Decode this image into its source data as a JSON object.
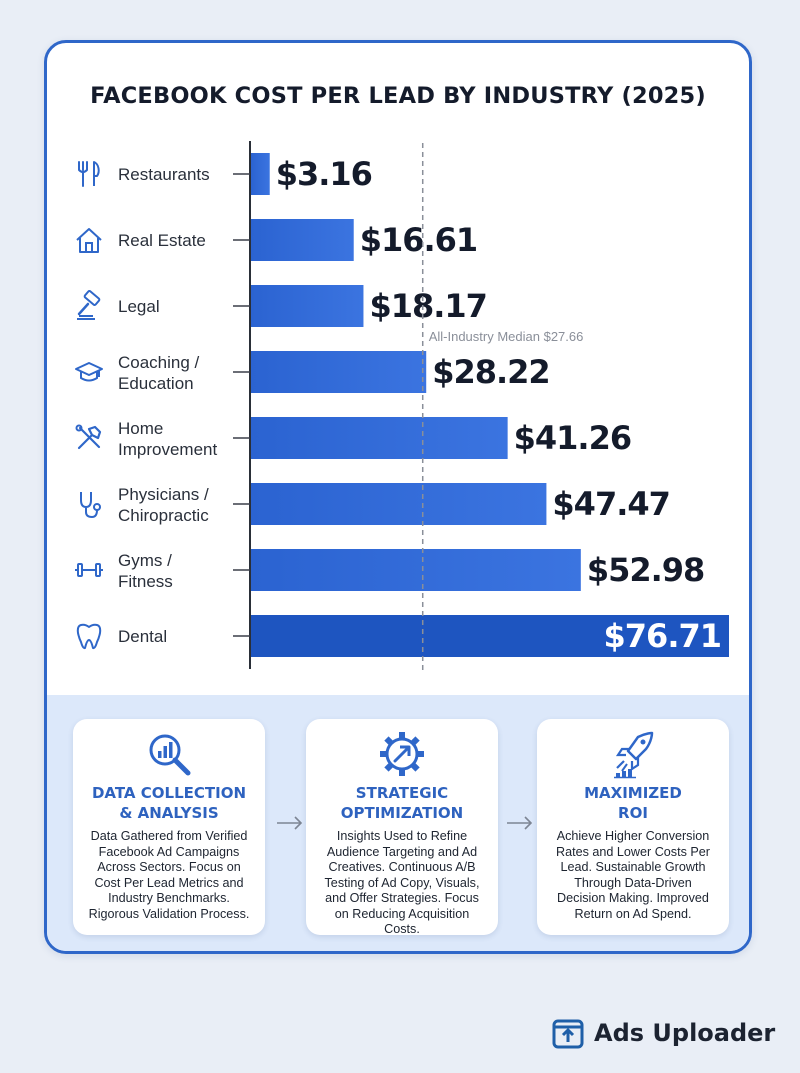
{
  "chart_data": {
    "type": "bar",
    "orientation": "horizontal",
    "title": "FACEBOOK COST PER LEAD BY INDUSTRY (2025)",
    "categories": [
      "Restaurants",
      "Real Estate",
      "Legal",
      "Coaching /\nEducation",
      "Home\nImprovement",
      "Physicians /\nChiropractic",
      "Gyms /\nFitness",
      "Dental"
    ],
    "category_icons": [
      "fork-knife-icon",
      "house-icon",
      "gavel-icon",
      "graduation-cap-icon",
      "tools-icon",
      "stethoscope-icon",
      "dumbbell-icon",
      "tooth-icon"
    ],
    "values": [
      3.16,
      16.61,
      18.17,
      28.22,
      41.26,
      47.47,
      52.98,
      76.71
    ],
    "value_labels": [
      "$3.16",
      "$16.61",
      "$18.17",
      "$28.22",
      "$41.26",
      "$47.47",
      "$52.98",
      "$76.71"
    ],
    "median": {
      "value": 27.66,
      "label": "All-Industry Median $27.66"
    },
    "xlim": [
      0,
      76.71
    ],
    "grid": false,
    "colors": {
      "bar": "#2f67d3",
      "bar_highlight": "#1e55c0",
      "median_line": "#8a8f99"
    }
  },
  "process": [
    {
      "icon": "magnifier-chart-icon",
      "title": "DATA COLLECTION\n& ANALYSIS",
      "text": "Data Gathered from Verified Facebook Ad Campaigns Across Sectors. Focus on Cost Per Lead Metrics and Industry Benchmarks. Rigorous Validation Process."
    },
    {
      "icon": "gear-arrow-icon",
      "title": "STRATEGIC\nOPTIMIZATION",
      "text": "Insights Used to Refine Audience Targeting and Ad Creatives. Continuous A/B Testing of Ad Copy, Visuals, and Offer Strategies. Focus on Reducing Acquisition Costs."
    },
    {
      "icon": "rocket-chart-icon",
      "title": "MAXIMIZED\nROI",
      "text": "Achieve Higher Conversion Rates and Lower Costs Per Lead. Sustainable Growth Through Data-Driven Decision Making. Improved Return on Ad Spend."
    }
  ],
  "brand": {
    "name": "Ads Uploader",
    "icon": "upload-box-icon",
    "color": "#1f5fa8"
  }
}
